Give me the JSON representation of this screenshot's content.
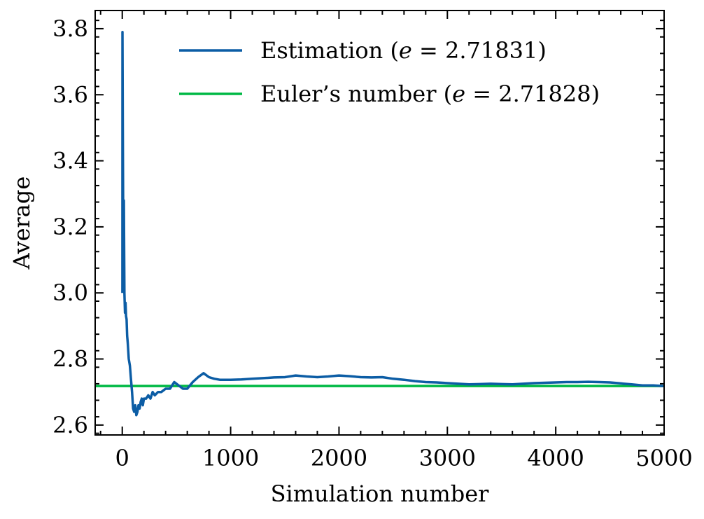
{
  "chart_data": {
    "type": "line",
    "title": "",
    "xlabel": "Simulation number",
    "ylabel": "Average",
    "xlim": [
      -250,
      5000
    ],
    "ylim": [
      2.57,
      3.855
    ],
    "x_ticks": [
      0,
      1000,
      2000,
      3000,
      4000,
      5000
    ],
    "x_tick_labels": [
      "0",
      "1000",
      "2000",
      "3000",
      "4000",
      "5000"
    ],
    "y_ticks": [
      2.6,
      2.8,
      3.0,
      3.2,
      3.4,
      3.6,
      3.8
    ],
    "y_tick_labels": [
      "2.6",
      "2.8",
      "3.0",
      "3.2",
      "3.4",
      "3.6",
      "3.8"
    ],
    "grid": false,
    "legend_position": "top-right",
    "colors": {
      "estimation": "#0C5DA5",
      "euler": "#00B945"
    },
    "series": [
      {
        "name": "Estimation",
        "legend_prefix": "Estimation (",
        "legend_var": "e",
        "legend_suffix": " = 2.71831)",
        "x": [
          1,
          2,
          5,
          10,
          12,
          15,
          18,
          20,
          25,
          30,
          35,
          40,
          45,
          50,
          60,
          70,
          80,
          90,
          100,
          110,
          120,
          130,
          140,
          150,
          160,
          170,
          180,
          190,
          200,
          220,
          240,
          260,
          280,
          300,
          330,
          360,
          400,
          440,
          480,
          520,
          560,
          600,
          650,
          700,
          750,
          800,
          850,
          900,
          1000,
          1100,
          1200,
          1300,
          1400,
          1500,
          1600,
          1700,
          1800,
          1900,
          2000,
          2100,
          2200,
          2300,
          2400,
          2500,
          2600,
          2700,
          2800,
          2900,
          3000,
          3100,
          3200,
          3300,
          3400,
          3500,
          3600,
          3700,
          3800,
          3900,
          4000,
          4100,
          4200,
          4300,
          4400,
          4500,
          4600,
          4700,
          4800,
          4900,
          5000
        ],
        "values": [
          3.0,
          3.79,
          3.5,
          3.1,
          3.2,
          3.28,
          3.1,
          3.0,
          2.94,
          2.97,
          2.93,
          2.92,
          2.87,
          2.85,
          2.8,
          2.78,
          2.74,
          2.7,
          2.65,
          2.64,
          2.66,
          2.63,
          2.64,
          2.66,
          2.65,
          2.67,
          2.68,
          2.66,
          2.68,
          2.68,
          2.69,
          2.68,
          2.7,
          2.69,
          2.7,
          2.7,
          2.71,
          2.71,
          2.73,
          2.72,
          2.71,
          2.71,
          2.73,
          2.745,
          2.757,
          2.745,
          2.74,
          2.737,
          2.737,
          2.738,
          2.74,
          2.742,
          2.744,
          2.745,
          2.75,
          2.747,
          2.745,
          2.747,
          2.75,
          2.748,
          2.745,
          2.744,
          2.745,
          2.74,
          2.737,
          2.733,
          2.73,
          2.729,
          2.727,
          2.725,
          2.723,
          2.724,
          2.725,
          2.724,
          2.723,
          2.725,
          2.727,
          2.728,
          2.729,
          2.73,
          2.73,
          2.731,
          2.73,
          2.729,
          2.726,
          2.723,
          2.72,
          2.72,
          2.718
        ]
      },
      {
        "name": "Euler's number",
        "legend_prefix": "Euler’s number (",
        "legend_var": "e",
        "legend_suffix": " = 2.71828)",
        "x": [
          -250,
          5000
        ],
        "values": [
          2.71828,
          2.71828
        ]
      }
    ]
  }
}
